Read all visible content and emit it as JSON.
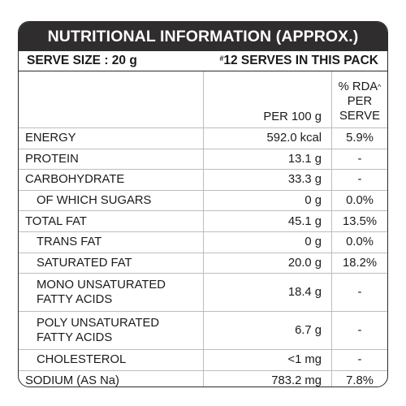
{
  "title": "NUTRITIONAL INFORMATION (APPROX.)",
  "serve_size": "SERVE SIZE : 20 g",
  "serves_mark": "#",
  "serves_text": "12 SERVES IN THIS PACK",
  "headers": {
    "per100": "PER 100 g",
    "rda_line1": "% RDA",
    "rda_mark": "^",
    "rda_line2": "PER SERVE"
  },
  "rows": [
    {
      "name": "ENERGY",
      "per100": "592.0 kcal",
      "rda": "5.9%"
    },
    {
      "name": "PROTEIN",
      "per100": "13.1 g",
      "rda": "-"
    },
    {
      "name": "CARBOHYDRATE",
      "per100": "33.3 g",
      "rda": "-"
    },
    {
      "name": "OF WHICH SUGARS",
      "per100": "0 g",
      "rda": "0.0%"
    },
    {
      "name": "TOTAL FAT",
      "per100": "45.1 g",
      "rda": "13.5%"
    },
    {
      "name": "TRANS FAT",
      "per100": "0 g",
      "rda": "0.0%"
    },
    {
      "name": "SATURATED FAT",
      "per100": "20.0 g",
      "rda": "18.2%"
    },
    {
      "name_line1": "MONO UNSATURATED",
      "name_line2": "FATTY ACIDS",
      "per100": "18.4 g",
      "rda": "-"
    },
    {
      "name_line1": "POLY UNSATURATED",
      "name_line2": "FATTY ACIDS",
      "per100": "6.7 g",
      "rda": "-"
    },
    {
      "name": "CHOLESTEROL",
      "per100": "<1 mg",
      "rda": "-"
    },
    {
      "name": "SODIUM (AS Na)",
      "per100": "783.2 mg",
      "rda": "7.8%"
    }
  ]
}
